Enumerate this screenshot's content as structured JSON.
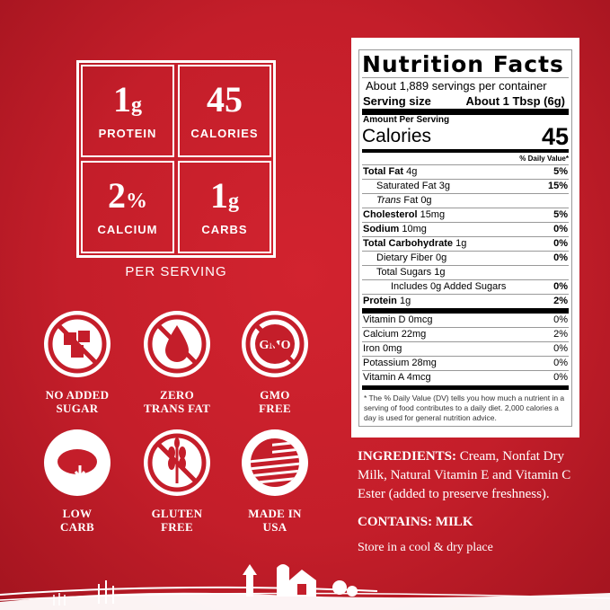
{
  "highlights": [
    {
      "value": "1",
      "unit": "g",
      "label": "PROTEIN"
    },
    {
      "value": "45",
      "unit": "",
      "label": "CALORIES"
    },
    {
      "value": "2",
      "unit": "%",
      "label": "CALCIUM"
    },
    {
      "value": "1",
      "unit": "g",
      "label": "CARBS"
    }
  ],
  "per_serving": "PER SERVING",
  "badges": [
    {
      "icon": "no-sugar-cubes-icon",
      "line1": "NO ADDED",
      "line2": "SUGAR"
    },
    {
      "icon": "no-drop-icon",
      "line1": "ZERO",
      "line2": "TRANS FAT"
    },
    {
      "icon": "no-gmo-icon",
      "text": "GMO",
      "line1": "GMO",
      "line2": "FREE"
    },
    {
      "icon": "bread-down-arrow-icon",
      "line1": "LOW",
      "line2": "CARB"
    },
    {
      "icon": "no-wheat-icon",
      "line1": "GLUTEN",
      "line2": "FREE"
    },
    {
      "icon": "usa-flag-icon",
      "line1": "MADE IN",
      "line2": "USA"
    }
  ],
  "nutrition": {
    "title": "Nutrition Facts",
    "servings": "About 1,889 servings per container",
    "serving_size_label": "Serving size",
    "serving_size": "About 1 Tbsp (6g)",
    "amount_per_serving": "Amount Per Serving",
    "calories_label": "Calories",
    "calories": "45",
    "dv_header": "% Daily Value*",
    "rows": [
      {
        "b": "Total Fat",
        "n": " 4g",
        "dv": "5%"
      },
      {
        "b": "",
        "n": "Saturated Fat 3g",
        "dv": "15%"
      },
      {
        "i": "Trans",
        "n": " Fat 0g",
        "dv": ""
      },
      {
        "b": "Cholesterol",
        "n": " 15mg",
        "dv": "5%"
      },
      {
        "b": "Sodium",
        "n": " 10mg",
        "dv": "0%"
      },
      {
        "b": "Total Carbohydrate",
        "n": " 1g",
        "dv": "0%"
      },
      {
        "b": "",
        "n": "Dietary Fiber 0g",
        "dv": "0%"
      },
      {
        "b": "",
        "n": "Total Sugars 1g",
        "dv": ""
      },
      {
        "b": "",
        "n": "Includes 0g Added Sugars",
        "dv": "0%"
      },
      {
        "b": "Protein",
        "n": " 1g",
        "dv": "2%"
      }
    ],
    "vitamins": [
      {
        "n": "Vitamin D 0mcg",
        "dv": "0%"
      },
      {
        "n": "Calcium 22mg",
        "dv": "2%"
      },
      {
        "n": "Iron 0mg",
        "dv": "0%"
      },
      {
        "n": "Potassium 28mg",
        "dv": "0%"
      },
      {
        "n": "Vitamin A 4mcg",
        "dv": "0%"
      }
    ],
    "footnote": "* The % Daily Value (DV) tells you how much a nutrient in a serving of food contributes to a daily diet. 2,000 calories a day is used for general nutrition advice."
  },
  "ingredients_label": "INGREDIENTS:",
  "ingredients": " Cream, Nonfat Dry Milk, Natural Vitamin E and Vitamin C Ester (added to preserve freshness).",
  "contains": "CONTAINS: MILK",
  "storage": "Store in a cool & dry place",
  "colors": {
    "background": "#c41e2a",
    "text": "#ffffff"
  }
}
